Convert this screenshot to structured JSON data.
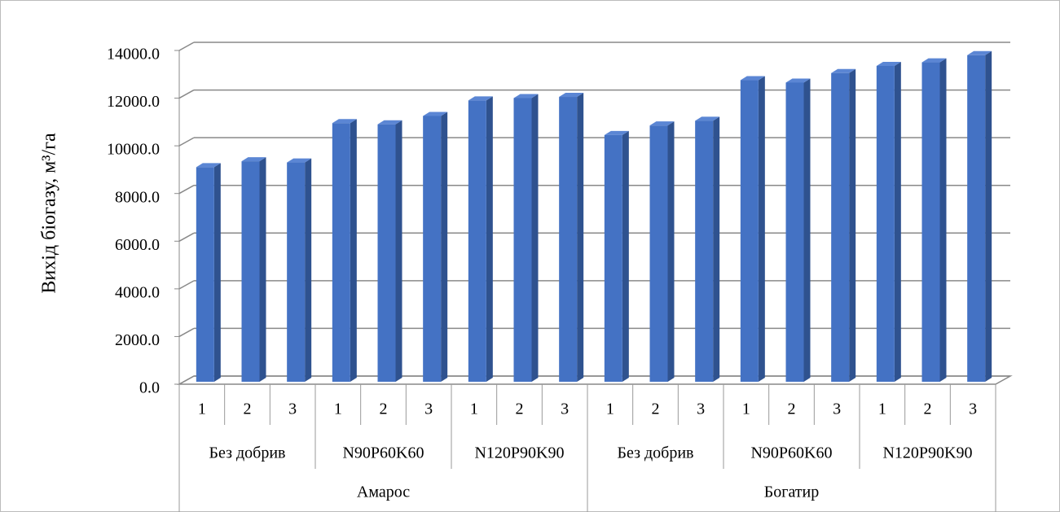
{
  "chart_data": {
    "type": "bar",
    "y_label": "Вихід біогазу, м³/га",
    "categories": [
      "1",
      "2",
      "3",
      "1",
      "2",
      "3",
      "1",
      "2",
      "3",
      "1",
      "2",
      "3",
      "1",
      "2",
      "3",
      "1",
      "2",
      "3"
    ],
    "subgroups": [
      "Без добрив",
      "N90P60K60",
      "N120P90K90",
      "Без добрив",
      "N90P60K60",
      "N120P90K90"
    ],
    "groups": [
      "Амарос",
      "Богатир"
    ],
    "values": [
      9000,
      9250,
      9200,
      10850,
      10800,
      11150,
      11800,
      11900,
      11950,
      10350,
      10750,
      10950,
      12650,
      12550,
      12950,
      13250,
      13400,
      13700
    ],
    "color": "#4472c4",
    "ylim": [
      0,
      14000
    ],
    "yticks": [
      {
        "value": 0,
        "label": "0.0"
      },
      {
        "value": 2000,
        "label": "2000.0"
      },
      {
        "value": 4000,
        "label": "4000.0"
      },
      {
        "value": 6000,
        "label": "6000.0"
      },
      {
        "value": 8000,
        "label": "8000.0"
      },
      {
        "value": 10000,
        "label": "10000.0"
      },
      {
        "value": 12000,
        "label": "12000.0"
      },
      {
        "value": 14000,
        "label": "14000.0"
      }
    ],
    "grid": true
  }
}
